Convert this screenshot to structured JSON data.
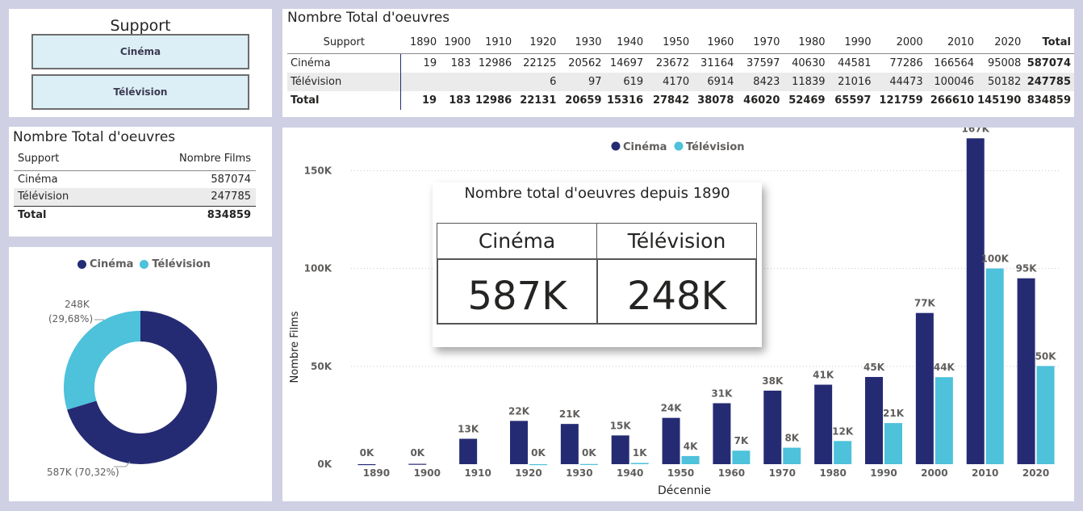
{
  "colors": {
    "cinema": "#252b73",
    "television": "#4ec1db",
    "background": "#cfd0e3"
  },
  "slicer": {
    "title": "Support",
    "options": [
      "Cinéma",
      "Télévision"
    ]
  },
  "matrix": {
    "title": "Nombre Total d'oeuvres",
    "header": [
      "Support",
      "1890",
      "1900",
      "1910",
      "1920",
      "1930",
      "1940",
      "1950",
      "1960",
      "1970",
      "1980",
      "1990",
      "2000",
      "2010",
      "2020",
      "Total"
    ],
    "rows": [
      [
        "Cinéma",
        "19",
        "183",
        "12986",
        "22125",
        "20562",
        "14697",
        "23672",
        "31164",
        "37597",
        "40630",
        "44581",
        "77286",
        "166564",
        "95008",
        "587074"
      ],
      [
        "Télévision",
        "",
        "",
        "",
        "6",
        "97",
        "619",
        "4170",
        "6914",
        "8423",
        "11839",
        "21016",
        "44473",
        "100046",
        "50182",
        "247785"
      ],
      [
        "Total",
        "19",
        "183",
        "12986",
        "22131",
        "20659",
        "15316",
        "27842",
        "38078",
        "46020",
        "52469",
        "65597",
        "121759",
        "266610",
        "145190",
        "834859"
      ]
    ]
  },
  "summary": {
    "title": "Nombre Total d'oeuvres",
    "header": [
      "Support",
      "Nombre Films"
    ],
    "rows": [
      [
        "Cinéma",
        "587074"
      ],
      [
        "Télévision",
        "247785"
      ],
      [
        "Total",
        "834859"
      ]
    ]
  },
  "donut": {
    "legend": [
      "Cinéma",
      "Télévision"
    ],
    "label_cinema": "587K (70,32%)",
    "label_tv_1": "248K",
    "label_tv_2": "(29,68%)"
  },
  "kpi": {
    "title": "Nombre total d'oeuvres depuis 1890",
    "cinema_label": "Cinéma",
    "tv_label": "Télévision",
    "cinema_value": "587K",
    "tv_value": "248K"
  },
  "chart_data": {
    "type": "bar",
    "categories": [
      "1890",
      "1900",
      "1910",
      "1920",
      "1930",
      "1940",
      "1950",
      "1960",
      "1970",
      "1980",
      "1990",
      "2000",
      "2010",
      "2020"
    ],
    "series": [
      {
        "name": "Cinéma",
        "values": [
          19,
          183,
          12986,
          22125,
          20562,
          14697,
          23672,
          31164,
          37597,
          40630,
          44581,
          77286,
          166564,
          95008
        ],
        "labels": [
          "0K",
          "0K",
          "13K",
          "22K",
          "21K",
          "15K",
          "24K",
          "31K",
          "38K",
          "41K",
          "45K",
          "77K",
          "167K",
          "95K"
        ]
      },
      {
        "name": "Télévision",
        "values": [
          0,
          0,
          0,
          6,
          97,
          619,
          4170,
          6914,
          8423,
          11839,
          21016,
          44473,
          100046,
          50182
        ],
        "labels": [
          "",
          "",
          "",
          "0K",
          "0K",
          "1K",
          "4K",
          "7K",
          "8K",
          "12K",
          "21K",
          "44K",
          "100K",
          "50K"
        ]
      }
    ],
    "xlabel": "Décennie",
    "ylabel": "Nombre Films",
    "ylim": [
      0,
      170000
    ],
    "yticks": [
      "0K",
      "50K",
      "100K",
      "150K"
    ],
    "ytick_values": [
      0,
      50000,
      100000,
      150000
    ],
    "legend": [
      "Cinéma",
      "Télévision"
    ],
    "legend_position": "top-center",
    "grid": true
  }
}
